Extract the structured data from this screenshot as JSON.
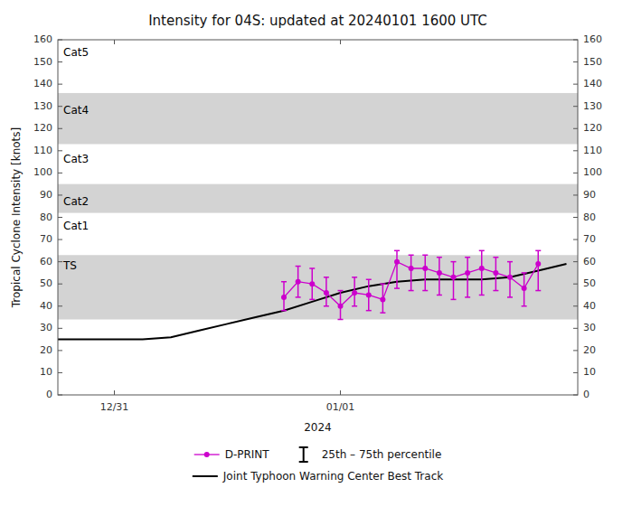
{
  "chart_data": {
    "type": "line",
    "title": "Intensity for 04S: updated at 20240101 1600 UTC",
    "x_label": "2024",
    "y_label": "Tropical Cyclone Intensity [knots]",
    "xlim": [
      -2.0,
      7.2
    ],
    "xticks": [
      {
        "value": -1.0,
        "label": "12/31"
      },
      {
        "value": 3.0,
        "label": "01/01"
      }
    ],
    "ylim": [
      0,
      160
    ],
    "yticks": [
      0,
      10,
      20,
      30,
      40,
      50,
      60,
      70,
      80,
      90,
      100,
      110,
      120,
      130,
      140,
      150,
      160
    ],
    "grid": false,
    "bands": [
      {
        "ymin": 34,
        "ymax": 63,
        "color": "#d3d3d3"
      },
      {
        "ymin": 82,
        "ymax": 95,
        "color": "#d3d3d3"
      },
      {
        "ymin": 113,
        "ymax": 136,
        "color": "#d3d3d3"
      }
    ],
    "annotations": [
      {
        "text": "Cat5",
        "y": 157
      },
      {
        "text": "Cat4",
        "y": 131
      },
      {
        "text": "Cat3",
        "y": 109
      },
      {
        "text": "Cat2",
        "y": 90
      },
      {
        "text": "Cat1",
        "y": 79
      },
      {
        "text": "TS",
        "y": 61
      }
    ],
    "series": [
      {
        "name": "Joint Typhoon Warning Center Best Track",
        "color": "#000000",
        "line_style": "solid",
        "x": [
          -2.0,
          -1.5,
          -1.0,
          -0.5,
          0.0,
          0.5,
          1.0,
          1.5,
          2.0,
          2.5,
          3.0,
          3.5,
          4.0,
          4.5,
          5.0,
          5.5,
          6.0,
          6.5,
          7.0
        ],
        "values": [
          25,
          25,
          25,
          25,
          26,
          29,
          32,
          35,
          38,
          42,
          46,
          49,
          51,
          52,
          52,
          52,
          53,
          56,
          59
        ]
      },
      {
        "name": "D-PRINT",
        "color": "#CC00CC",
        "line_style": "solid",
        "marker": "circle",
        "error_bar_name": "25th – 75th percentile",
        "x": [
          2.0,
          2.25,
          2.5,
          2.75,
          3.0,
          3.25,
          3.5,
          3.75,
          4.0,
          4.25,
          4.5,
          4.75,
          5.0,
          5.25,
          5.5,
          5.75,
          6.0,
          6.25,
          6.5
        ],
        "values": [
          44,
          51,
          50,
          46,
          40,
          46,
          45,
          43,
          60,
          57,
          57,
          55,
          53,
          55,
          57,
          55,
          53,
          48,
          59
        ],
        "low": [
          38,
          44,
          43,
          40,
          34,
          40,
          38,
          37,
          48,
          47,
          47,
          45,
          43,
          44,
          45,
          47,
          44,
          40,
          47
        ],
        "high": [
          51,
          58,
          57,
          53,
          47,
          53,
          52,
          50,
          65,
          63,
          63,
          62,
          60,
          62,
          65,
          62,
          60,
          55,
          65
        ]
      }
    ]
  }
}
